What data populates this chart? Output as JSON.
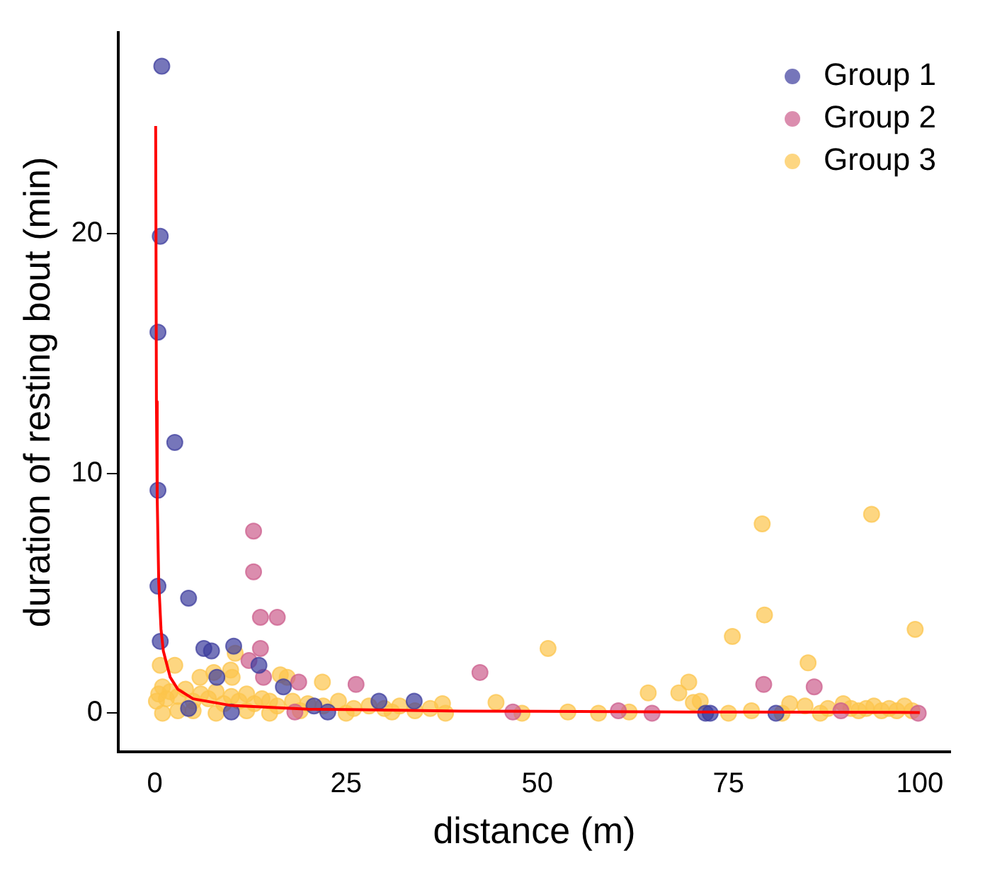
{
  "chart_data": {
    "type": "scatter",
    "xlabel": "distance (m)",
    "ylabel": "duration of resting bout (min)",
    "xlim": [
      -4.8,
      104
    ],
    "ylim": [
      -1.6,
      28.4
    ],
    "xticks": [
      0,
      25,
      50,
      75,
      100
    ],
    "yticks": [
      0,
      10,
      20
    ],
    "grid": false,
    "legend": "top right",
    "marker": "circle",
    "series": [
      {
        "name": "Group 1",
        "color": "#3c3c9c",
        "x": [
          0.9,
          0.7,
          0.4,
          0.4,
          2.6,
          0.4,
          0.7,
          4.4,
          6.4,
          7.4,
          10.3,
          13.6,
          8.1,
          16.8,
          29.3,
          33.9,
          20.8,
          72.6,
          81.2,
          72,
          22.6,
          10,
          4.4
        ],
        "values": [
          27,
          19.9,
          15.9,
          9.3,
          11.3,
          5.3,
          3,
          4.8,
          2.7,
          2.6,
          2.8,
          2,
          1.5,
          1.1,
          0.5,
          0.5,
          0.3,
          0,
          0,
          0,
          0.05,
          0.05,
          0.2
        ]
      },
      {
        "name": "Group 2",
        "color": "#cc5c8c",
        "x": [
          12.9,
          12.9,
          16,
          13.8,
          13.8,
          12.3,
          14.2,
          18.8,
          26.3,
          42.5,
          46.8,
          79.6,
          86.2,
          60.6,
          65,
          99.8,
          89.7,
          18.3
        ],
        "values": [
          7.6,
          5.9,
          4,
          4,
          2.7,
          2.2,
          1.5,
          1.3,
          1.2,
          1.7,
          0.05,
          1.2,
          1.1,
          0.1,
          0,
          0,
          0.1,
          0.05
        ]
      },
      {
        "name": "Group 3",
        "color": "#fcc44c",
        "x": [
          79.4,
          93.7,
          79.7,
          75.5,
          51.4,
          99.4,
          85.4,
          83,
          69.8,
          68.5,
          64.5,
          70.4,
          71.3,
          0.7,
          2.6,
          10.5,
          9.9,
          10.1,
          16.4,
          17.3,
          21.9,
          37.6,
          44.6,
          5.9,
          7.7,
          0.2,
          0.5,
          1,
          1.5,
          2,
          3,
          4,
          5,
          6,
          7,
          8,
          9,
          10,
          11,
          12,
          13,
          14,
          15,
          16,
          18,
          20,
          22,
          24,
          26,
          28,
          30,
          32,
          34,
          36,
          1,
          3,
          5,
          8,
          12,
          15,
          19,
          25,
          31,
          38,
          48,
          54,
          58,
          62,
          75,
          78,
          82,
          85,
          88,
          90,
          92,
          94,
          96,
          97,
          98,
          99,
          87,
          91,
          95,
          93
        ],
        "values": [
          7.9,
          8.3,
          4.1,
          3.2,
          2.7,
          3.5,
          2.1,
          0.4,
          1.3,
          0.85,
          0.85,
          0.45,
          0.5,
          2,
          2,
          2.5,
          1.8,
          1.5,
          1.6,
          1.5,
          1.3,
          0.4,
          0.45,
          1.5,
          1.7,
          0.5,
          0.8,
          1.1,
          0.6,
          0.9,
          0.7,
          1,
          0.5,
          0.8,
          0.6,
          0.9,
          0.4,
          0.7,
          0.5,
          0.8,
          0.4,
          0.6,
          0.5,
          0.3,
          0.5,
          0.4,
          0.3,
          0.5,
          0.2,
          0.3,
          0.2,
          0.3,
          0.1,
          0.2,
          0,
          0.1,
          0.1,
          0,
          0.1,
          0,
          0.1,
          0,
          0.05,
          0,
          0,
          0.05,
          0,
          0.05,
          0,
          0.1,
          0,
          0.3,
          0.2,
          0.4,
          0.1,
          0.3,
          0.2,
          0.1,
          0.3,
          0.1,
          0,
          0.2,
          0.1,
          0.2
        ]
      },
      {
        "type": "line",
        "color": "#ff0000",
        "marker": "none",
        "x": [
          0.1,
          0.2,
          0.3,
          0.5,
          0.8,
          1.1,
          2,
          3,
          5,
          10,
          20,
          40,
          70,
          100
        ],
        "values": [
          24.5,
          13,
          9,
          5.5,
          3.5,
          2.6,
          1.5,
          1,
          0.6,
          0.32,
          0.17,
          0.09,
          0.05,
          0.03
        ]
      }
    ]
  }
}
